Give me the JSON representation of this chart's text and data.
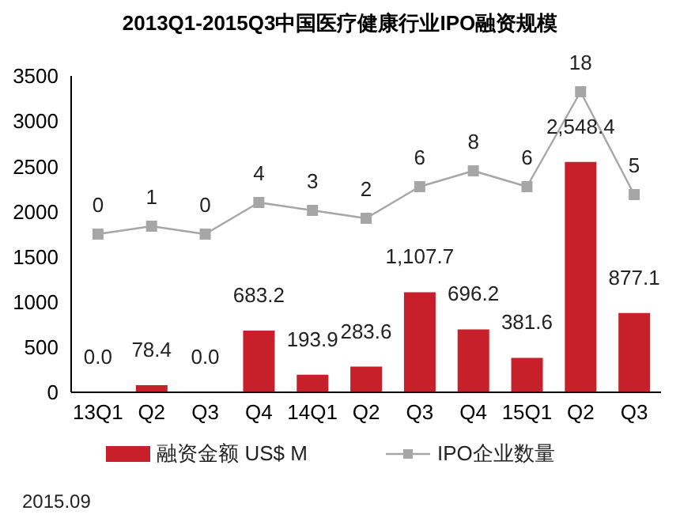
{
  "chart_data": {
    "type": "bar",
    "title": "2013Q1-2015Q3中国医疗健康行业IPO融资规模",
    "categories": [
      "13Q1",
      "Q2",
      "Q3",
      "Q4",
      "14Q1",
      "Q2",
      "Q3",
      "Q4",
      "15Q1",
      "Q2",
      "Q3"
    ],
    "series": [
      {
        "name": "融资金额 US$ M",
        "color": "#c8202a",
        "values": [
          0.0,
          78.4,
          0.0,
          683.2,
          193.9,
          283.6,
          1107.7,
          696.2,
          381.6,
          2548.4,
          877.1
        ],
        "value_labels": [
          "0.0",
          "78.4",
          "0.0",
          "683.2",
          "193.9",
          "283.6",
          "1,107.7",
          "696.2",
          "381.6",
          "2,548.4",
          "877.1"
        ]
      },
      {
        "name": "IPO企业数量",
        "type": "line",
        "axis": "y2",
        "color": "#a6a6a6",
        "values": [
          0,
          1,
          0,
          4,
          3,
          2,
          6,
          8,
          6,
          18,
          5
        ],
        "value_labels": [
          "0",
          "1",
          "0",
          "4",
          "3",
          "2",
          "6",
          "8",
          "6",
          "18",
          "5"
        ]
      }
    ],
    "ylim": [
      0,
      3500
    ],
    "yticks": [
      0,
      500,
      1000,
      1500,
      2000,
      2500,
      3000,
      3500
    ],
    "y2lim": [
      -20,
      20
    ],
    "tick_labels": "xy",
    "marker": "square",
    "legend": "bottom",
    "grid": false,
    "annotations": [
      "2015.09"
    ]
  }
}
